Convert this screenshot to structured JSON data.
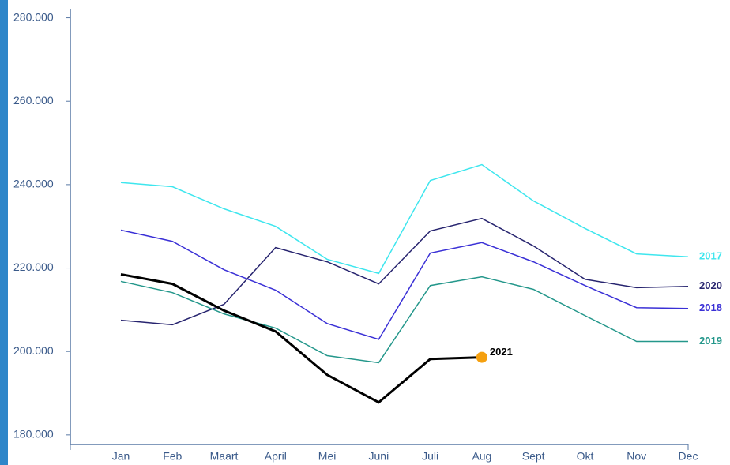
{
  "chart_data": {
    "type": "line",
    "categories": [
      "Jan",
      "Feb",
      "Maart",
      "April",
      "Mei",
      "Juni",
      "Juli",
      "Aug",
      "Sept",
      "Okt",
      "Nov",
      "Dec"
    ],
    "series": [
      {
        "name": "2017",
        "color": "#3ee6ee",
        "values": [
          240500,
          239500,
          234200,
          230000,
          222100,
          218700,
          241000,
          244800,
          236100,
          229500,
          223400,
          222700
        ]
      },
      {
        "name": "2020",
        "color": "#27246f",
        "values": [
          207500,
          206400,
          211300,
          224900,
          221500,
          216200,
          228900,
          231900,
          225300,
          217300,
          215300,
          215600
        ]
      },
      {
        "name": "2018",
        "color": "#3a30d6",
        "values": [
          229100,
          226400,
          219600,
          214700,
          206700,
          202900,
          223600,
          226100,
          221500,
          215800,
          210500,
          210300
        ]
      },
      {
        "name": "2019",
        "color": "#24978b",
        "values": [
          216800,
          214100,
          209000,
          205600,
          199000,
          197300,
          215800,
          217900,
          214900,
          208600,
          202400,
          202400
        ]
      },
      {
        "name": "2021",
        "color": "#000000",
        "values": [
          218500,
          216200,
          209800,
          204800,
          194400,
          187800,
          198200,
          198600,
          null,
          null,
          null,
          null
        ]
      }
    ],
    "ylim": [
      177700,
      282000
    ],
    "yticks": [
      {
        "value": 180000,
        "label": "180.000"
      },
      {
        "value": 200000,
        "label": "200.000"
      },
      {
        "value": 220000,
        "label": "220.000"
      },
      {
        "value": 240000,
        "label": "240.000"
      },
      {
        "value": 260000,
        "label": "260.000"
      },
      {
        "value": 280000,
        "label": "280.000"
      }
    ],
    "marker_color": "#f5a00f"
  }
}
